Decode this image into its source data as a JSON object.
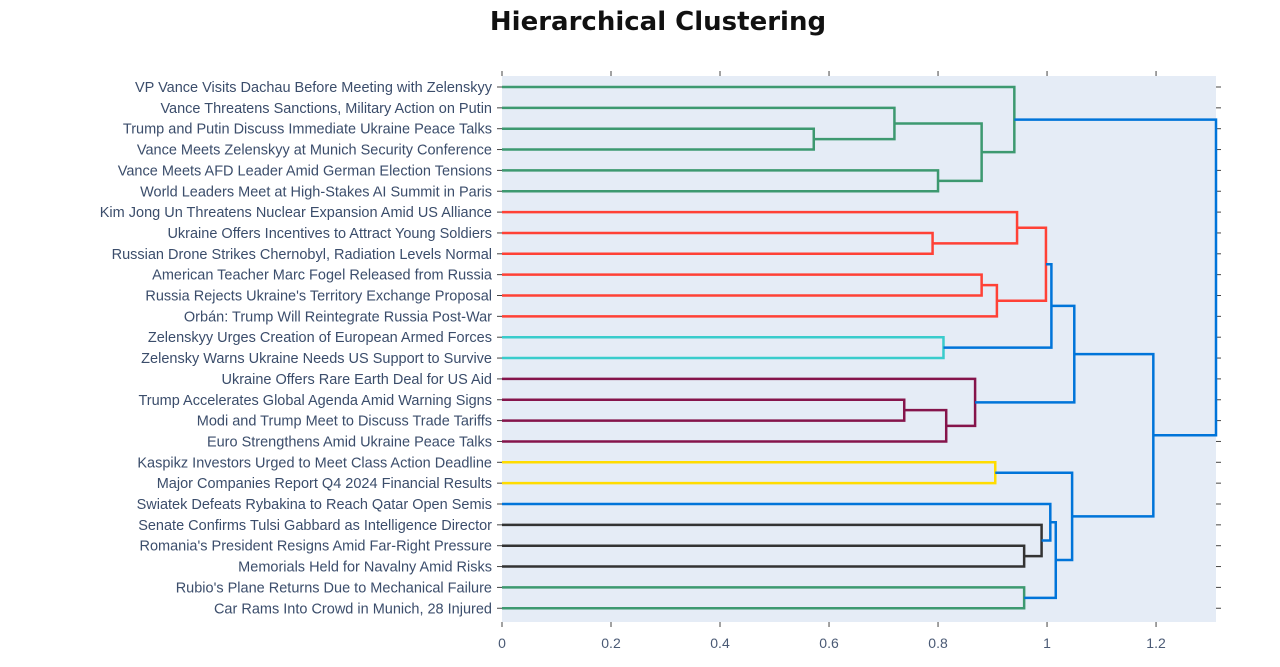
{
  "chart_data": {
    "type": "dendrogram",
    "title": "Hierarchical Clustering",
    "xlabel": "",
    "ylabel": "",
    "xlim": [
      0,
      1.31
    ],
    "x_ticks": [
      0,
      0.2,
      0.4,
      0.6,
      0.8,
      1,
      1.2
    ],
    "grid": false,
    "orientation": "left",
    "leaves": [
      "VP Vance Visits Dachau Before Meeting with Zelenskyy",
      "Vance Threatens Sanctions, Military Action on Putin",
      "Trump and Putin Discuss Immediate Ukraine Peace Talks",
      "Vance Meets Zelenskyy at Munich Security Conference",
      "Vance Meets AFD Leader Amid German Election Tensions",
      "World Leaders Meet at High-Stakes AI Summit in Paris",
      "Kim Jong Un Threatens Nuclear Expansion Amid US Alliance",
      "Ukraine Offers Incentives to Attract Young Soldiers",
      "Russian Drone Strikes Chernobyl, Radiation Levels Normal",
      "American Teacher Marc Fogel Released from Russia",
      "Russia Rejects Ukraine's Territory Exchange Proposal",
      "Orbán: Trump Will Reintegrate Russia Post-War",
      "Zelenskyy Urges Creation of European Armed Forces",
      "Zelensky Warns Ukraine Needs US Support to Survive",
      "Ukraine Offers Rare Earth Deal for US Aid",
      "Trump Accelerates Global Agenda Amid Warning Signs",
      "Modi and Trump Meet to Discuss Trade Tariffs",
      "Euro Strengthens Amid Ukraine Peace Talks",
      "Kaspikz Investors Urged to Meet Class Action Deadline",
      "Major Companies Report Q4 2024 Financial Results",
      "Swiatek Defeats Rybakina to Reach Qatar Open Semis",
      "Senate Confirms Tulsi Gabbard as Intelligence Director",
      "Romania's President Resigns Amid Far-Right Pressure",
      "Memorials Held for Navalny Amid Risks",
      "Rubio's Plane Returns Due to Mechanical Failure",
      "Car Rams Into Crowd in Munich, 28 Injured"
    ],
    "merges": [
      {
        "id": "m1",
        "left": "L2",
        "right": "L3",
        "height": 0.572,
        "color": "#3d9970"
      },
      {
        "id": "m2",
        "left": "L1",
        "right": "m1",
        "height": 0.72,
        "color": "#3d9970"
      },
      {
        "id": "m3",
        "left": "L4",
        "right": "L5",
        "height": 0.8,
        "color": "#3d9970"
      },
      {
        "id": "m4",
        "left": "m2",
        "right": "m3",
        "height": 0.88,
        "color": "#3d9970"
      },
      {
        "id": "m5",
        "left": "L0",
        "right": "m4",
        "height": 0.94,
        "color": "#3d9970"
      },
      {
        "id": "m6",
        "left": "L7",
        "right": "L8",
        "height": 0.79,
        "color": "#ff4136"
      },
      {
        "id": "m7",
        "left": "L6",
        "right": "m6",
        "height": 0.945,
        "color": "#ff4136"
      },
      {
        "id": "m8",
        "left": "L9",
        "right": "L10",
        "height": 0.88,
        "color": "#ff4136"
      },
      {
        "id": "m9",
        "left": "m8",
        "right": "L11",
        "height": 0.908,
        "color": "#ff4136"
      },
      {
        "id": "m10",
        "left": "m7",
        "right": "m9",
        "height": 0.998,
        "color": "#ff4136"
      },
      {
        "id": "m11",
        "left": "L12",
        "right": "L13",
        "height": 0.81,
        "color": "#39cccc"
      },
      {
        "id": "m12",
        "left": "m10",
        "right": "m11",
        "height": 1.008,
        "color": "#0074d9"
      },
      {
        "id": "m13",
        "left": "L15",
        "right": "L16",
        "height": 0.738,
        "color": "#85144b"
      },
      {
        "id": "m14",
        "left": "m13",
        "right": "L17",
        "height": 0.815,
        "color": "#85144b"
      },
      {
        "id": "m15",
        "left": "L14",
        "right": "m14",
        "height": 0.868,
        "color": "#85144b"
      },
      {
        "id": "m16",
        "left": "m12",
        "right": "m15",
        "height": 1.05,
        "color": "#0074d9"
      },
      {
        "id": "m17",
        "left": "L18",
        "right": "L19",
        "height": 0.905,
        "color": "#ffdc00"
      },
      {
        "id": "m18",
        "left": "L22",
        "right": "L23",
        "height": 0.958,
        "color": "#333333"
      },
      {
        "id": "m19",
        "left": "L21",
        "right": "m18",
        "height": 0.99,
        "color": "#333333"
      },
      {
        "id": "m20",
        "left": "L20",
        "right": "m19",
        "height": 1.006,
        "color": "#0074d9"
      },
      {
        "id": "m21",
        "left": "L24",
        "right": "L25",
        "height": 0.958,
        "color": "#3d9970"
      },
      {
        "id": "m22",
        "left": "m20",
        "right": "m21",
        "height": 1.016,
        "color": "#0074d9"
      },
      {
        "id": "m23",
        "left": "m17",
        "right": "m22",
        "height": 1.046,
        "color": "#0074d9"
      },
      {
        "id": "m24",
        "left": "m16",
        "right": "m23",
        "height": 1.195,
        "color": "#0074d9"
      },
      {
        "id": "m25",
        "left": "m5",
        "right": "m24",
        "height": 1.31,
        "color": "#0074d9"
      }
    ],
    "colors": {
      "plot_background": "#e5ecf6",
      "green": "#3d9970",
      "red": "#ff4136",
      "cyan": "#39cccc",
      "maroon": "#85144b",
      "yellow": "#ffdc00",
      "black": "#333333",
      "blue": "#0074d9"
    }
  }
}
